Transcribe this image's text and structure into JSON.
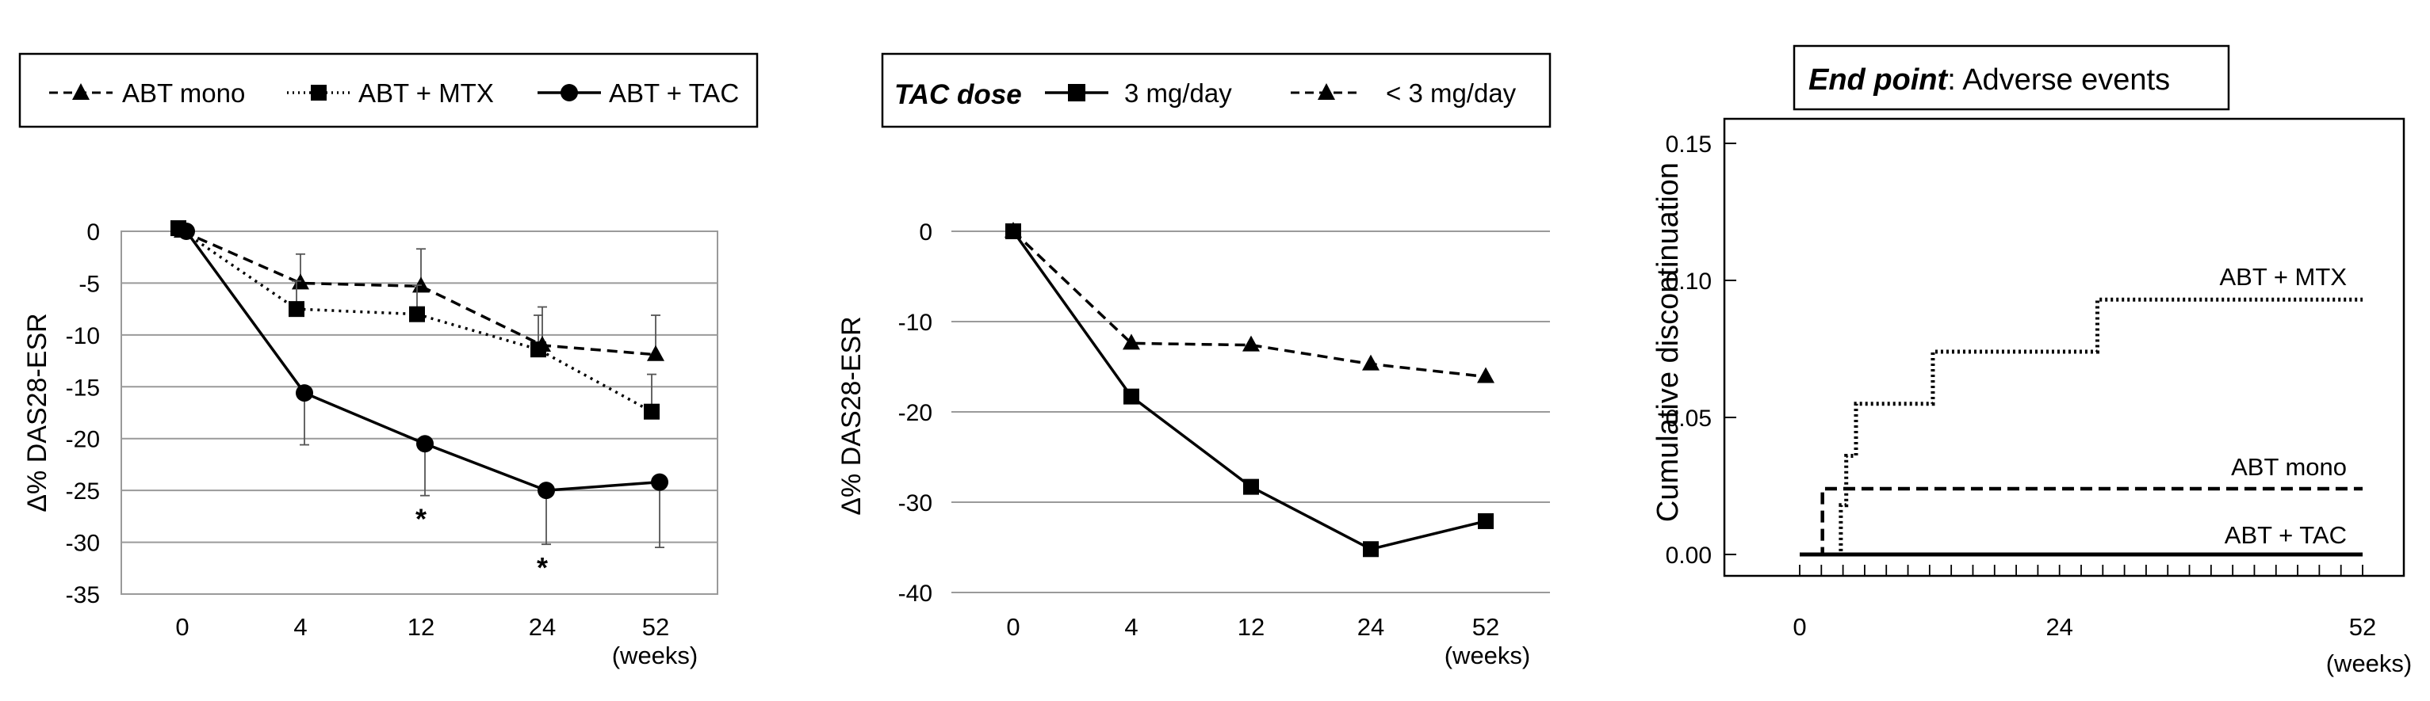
{
  "chart_data": [
    {
      "type": "line",
      "categories": [
        "0",
        "4",
        "12",
        "24",
        "52"
      ],
      "x_unit": "(weeks)",
      "ylabel": "Δ% DAS28-ESR",
      "ylim": [
        -35,
        0
      ],
      "yticks": [
        0,
        -5,
        -10,
        -15,
        -20,
        -25,
        -30,
        -35
      ],
      "grid": true,
      "legend": "top",
      "series": [
        {
          "name": "ABT mono",
          "marker": "triangle",
          "dash": "dashed",
          "values": [
            0,
            -5.0,
            -5.3,
            -11.0,
            -11.9
          ],
          "err": [
            null,
            2.8,
            3.6,
            3.7,
            3.8
          ]
        },
        {
          "name": "ABT + MTX",
          "marker": "square",
          "dash": "dotted",
          "values": [
            0.3,
            -7.5,
            -8.0,
            -11.4,
            -17.4
          ],
          "err": [
            null,
            2.7,
            2.8,
            3.3,
            3.6
          ]
        },
        {
          "name": "ABT + TAC",
          "marker": "circle",
          "dash": "solid",
          "values": [
            0,
            -15.6,
            -20.5,
            -25.0,
            -24.2
          ],
          "err": [
            null,
            5.0,
            5.0,
            5.2,
            6.3
          ]
        }
      ],
      "annotations": [
        {
          "text": "*",
          "category": "12"
        },
        {
          "text": "*",
          "category": "24"
        }
      ]
    },
    {
      "type": "line",
      "categories": [
        "0",
        "4",
        "12",
        "24",
        "52"
      ],
      "x_unit": "(weeks)",
      "ylabel": "Δ% DAS28-ESR",
      "ylim": [
        -40,
        0
      ],
      "yticks": [
        0,
        -10,
        -20,
        -30,
        -40
      ],
      "grid": true,
      "legend": "top",
      "legend_title": "TAC dose",
      "series": [
        {
          "name": "3 mg/day",
          "marker": "square",
          "dash": "solid",
          "values": [
            0,
            -18.3,
            -28.3,
            -35.2,
            -32.1
          ]
        },
        {
          "name": "< 3 mg/day",
          "marker": "triangle",
          "dash": "dashed",
          "values": [
            0,
            -12.4,
            -12.6,
            -14.7,
            -16.1
          ]
        }
      ]
    },
    {
      "type": "line",
      "step": true,
      "ylabel": "Cumulative discontinuation",
      "title_bold": "End point",
      "title_rest": ": Adverse events",
      "xlim": [
        0,
        52
      ],
      "x_ticklabels": [
        0,
        24,
        52
      ],
      "x_minor_step": 2,
      "x_unit": "(weeks)",
      "ylim": [
        0,
        0.16
      ],
      "yticks": [
        "0.00",
        "0.05",
        "0.10",
        "0.15"
      ],
      "grid": false,
      "series": [
        {
          "name": "ABT + MTX",
          "dash": "dotted",
          "points": [
            [
              0,
              0.0
            ],
            [
              3.8,
              0.0
            ],
            [
              3.8,
              0.018
            ],
            [
              4.3,
              0.018
            ],
            [
              4.3,
              0.036
            ],
            [
              5.2,
              0.036
            ],
            [
              5.2,
              0.055
            ],
            [
              12.3,
              0.055
            ],
            [
              12.3,
              0.074
            ],
            [
              27.5,
              0.074
            ],
            [
              27.5,
              0.093
            ],
            [
              52,
              0.093
            ]
          ]
        },
        {
          "name": "ABT mono",
          "dash": "dashed",
          "points": [
            [
              0,
              0.0
            ],
            [
              2.1,
              0.0
            ],
            [
              2.1,
              0.024
            ],
            [
              52,
              0.024
            ]
          ]
        },
        {
          "name": "ABT + TAC",
          "dash": "solid",
          "points": [
            [
              0,
              0.0
            ],
            [
              52,
              0.0
            ]
          ]
        }
      ]
    }
  ]
}
